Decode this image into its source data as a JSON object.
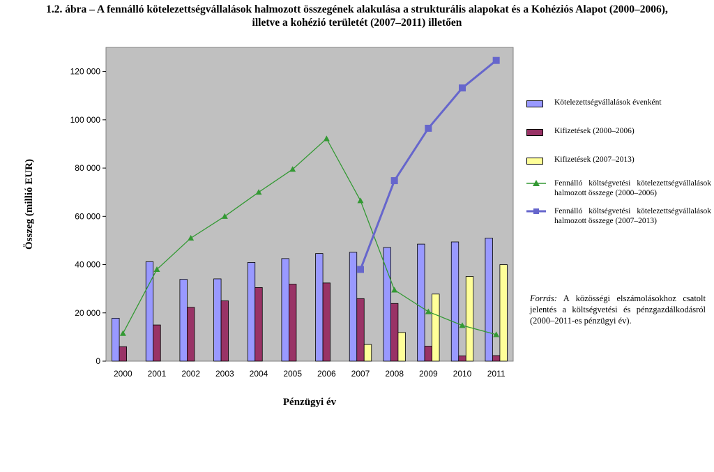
{
  "title": {
    "line1": "1.2. ábra – A  fennálló kötelezettségvállalások halmozott összegének alakulása a strukturális alapokat és a Kohéziós Alapot (2000–2006),",
    "line2": "illetve a kohézió területét (2007–2011) illetően"
  },
  "source": {
    "label": "Forrás:",
    "text": "A közösségi elszámolásokhoz csatolt jelentés a költségvetési és pénzgazdálkodásról (2000–2011-es pénzügyi év)."
  },
  "colors": {
    "plot_bg": "#c0c0c0",
    "commitments": "#9999ff",
    "payments_0006": "#993366",
    "payments_0713": "#ffff99",
    "ral_0006": "#339933",
    "ral_0713": "#6666cc"
  },
  "chart_data": {
    "type": "bar",
    "title": "",
    "xlabel": "Pénzügyi év",
    "ylabel": "Összeg (millió EUR)",
    "ylim": [
      0,
      130000
    ],
    "yticks": [
      0,
      20000,
      40000,
      60000,
      80000,
      100000,
      120000
    ],
    "ytick_labels": [
      "0",
      "20 000",
      "40 000",
      "60 000",
      "80 000",
      "100 000",
      "120 000"
    ],
    "grid": false,
    "legend_position": "right",
    "categories": [
      "2000",
      "2001",
      "2002",
      "2003",
      "2004",
      "2005",
      "2006",
      "2007",
      "2008",
      "2009",
      "2010",
      "2011"
    ],
    "series": [
      {
        "name": "Kötelezettségvállalások évenként",
        "kind": "bar",
        "values": [
          17800,
          41200,
          33900,
          34100,
          40900,
          42500,
          44600,
          45100,
          47100,
          48500,
          49400,
          51000
        ]
      },
      {
        "name": "Kifizetések (2000–2006)",
        "kind": "bar",
        "values": [
          6000,
          15000,
          22300,
          25000,
          30500,
          31900,
          32400,
          25900,
          23900,
          6200,
          2200,
          2300
        ]
      },
      {
        "name": "Kifizetések (2007–2013)",
        "kind": "bar",
        "values": [
          null,
          null,
          null,
          null,
          null,
          null,
          null,
          6900,
          11900,
          27800,
          35100,
          40000
        ]
      },
      {
        "name": "Fennálló költségvetési kötelezettségvállalások halmozott összege (2000–2006)",
        "kind": "line",
        "marker": "triangle",
        "values": [
          11500,
          38000,
          51000,
          60000,
          70000,
          79500,
          92200,
          66500,
          29500,
          20500,
          14800,
          11000
        ]
      },
      {
        "name": "Fennálló költségvetési kötelezettségvállalások halmozott összege (2007–2013)",
        "kind": "line",
        "marker": "square",
        "values": [
          null,
          null,
          null,
          null,
          null,
          null,
          null,
          38000,
          74800,
          96500,
          113200,
          124600
        ]
      }
    ]
  }
}
